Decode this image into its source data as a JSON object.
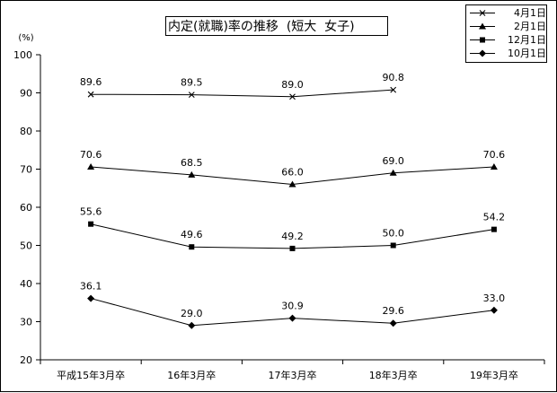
{
  "chart_data": {
    "type": "line",
    "title": "内定(就職)率の推移  (短大  女子)",
    "ylabel": "(%)",
    "categories": [
      "平成15年3月卒",
      "16年3月卒",
      "17年3月卒",
      "18年3月卒",
      "19年3月卒"
    ],
    "ylim": [
      20,
      100
    ],
    "yticks": [
      "100",
      "90",
      "80",
      "70",
      "60",
      "50",
      "40",
      "30",
      "20"
    ],
    "grid": false,
    "legend_position": "top-right",
    "series": [
      {
        "name": "4月1日",
        "marker": "x",
        "values": [
          89.6,
          89.5,
          89.0,
          90.8,
          null
        ],
        "labels": [
          "89.6",
          "89.5",
          "89.0",
          "90.8",
          null
        ]
      },
      {
        "name": "2月1日",
        "marker": "triangle",
        "values": [
          70.6,
          68.5,
          66.0,
          69.0,
          70.6
        ],
        "labels": [
          "70.6",
          "68.5",
          "66.0",
          "69.0",
          "70.6"
        ]
      },
      {
        "name": "12月1日",
        "marker": "square",
        "values": [
          55.6,
          49.6,
          49.2,
          50.0,
          54.2
        ],
        "labels": [
          "55.6",
          "49.6",
          "49.2",
          "50.0",
          "54.2"
        ]
      },
      {
        "name": "10月1日",
        "marker": "diamond",
        "values": [
          36.1,
          29.0,
          30.9,
          29.6,
          33.0
        ],
        "labels": [
          "36.1",
          "29.0",
          "30.9",
          "29.6",
          "33.0"
        ]
      }
    ]
  }
}
